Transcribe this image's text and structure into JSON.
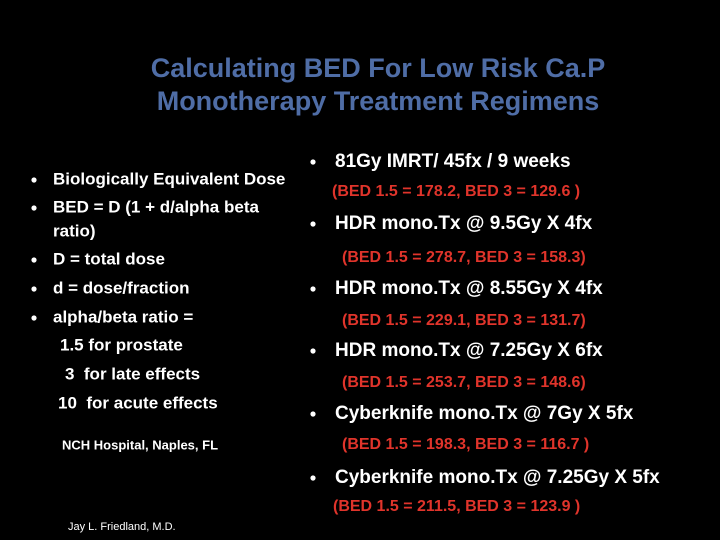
{
  "title": [
    "Calculating BED For Low Risk Ca.P",
    "Monotherapy Treatment Regimens"
  ],
  "left": {
    "bullets": [
      [
        "Biologically Equivalent Dose"
      ],
      [
        "BED = D (1 + d/alpha beta",
        "ratio)"
      ],
      [
        "D = total dose"
      ],
      [
        "d = dose/fraction"
      ],
      [
        "alpha/beta ratio ="
      ]
    ],
    "ratio_values": [
      "1.5 for prostate",
      "3  for late effects",
      "10  for acute effects"
    ],
    "note": "NCH Hospital, Naples, FL"
  },
  "right": {
    "regimens": [
      {
        "name": "81Gy IMRT/ 45fx / 9 weeks",
        "bed": "(BED 1.5 = 178.2, BED 3 = 129.6 )"
      },
      {
        "name": "HDR mono.Tx @ 9.5Gy X 4fx",
        "bed": "(BED 1.5 = 278.7, BED 3 = 158.3)"
      },
      {
        "name": "HDR mono.Tx @ 8.55Gy X 4fx",
        "bed": "(BED 1.5 = 229.1, BED 3 = 131.7)"
      },
      {
        "name": "HDR mono.Tx @ 7.25Gy X 6fx",
        "bed": "(BED 1.5 = 253.7, BED 3 = 148.6)"
      },
      {
        "name": "Cyberknife mono.Tx @ 7Gy X 5fx",
        "bed": "(BED 1.5 = 198.3, BED 3 = 116.7 )"
      },
      {
        "name": "Cyberknife mono.Tx @ 7.25Gy X 5fx",
        "bed": "(BED 1.5 = 211.5, BED 3 = 123.9 )"
      }
    ]
  },
  "footer": "Jay L. Friedland, M.D."
}
